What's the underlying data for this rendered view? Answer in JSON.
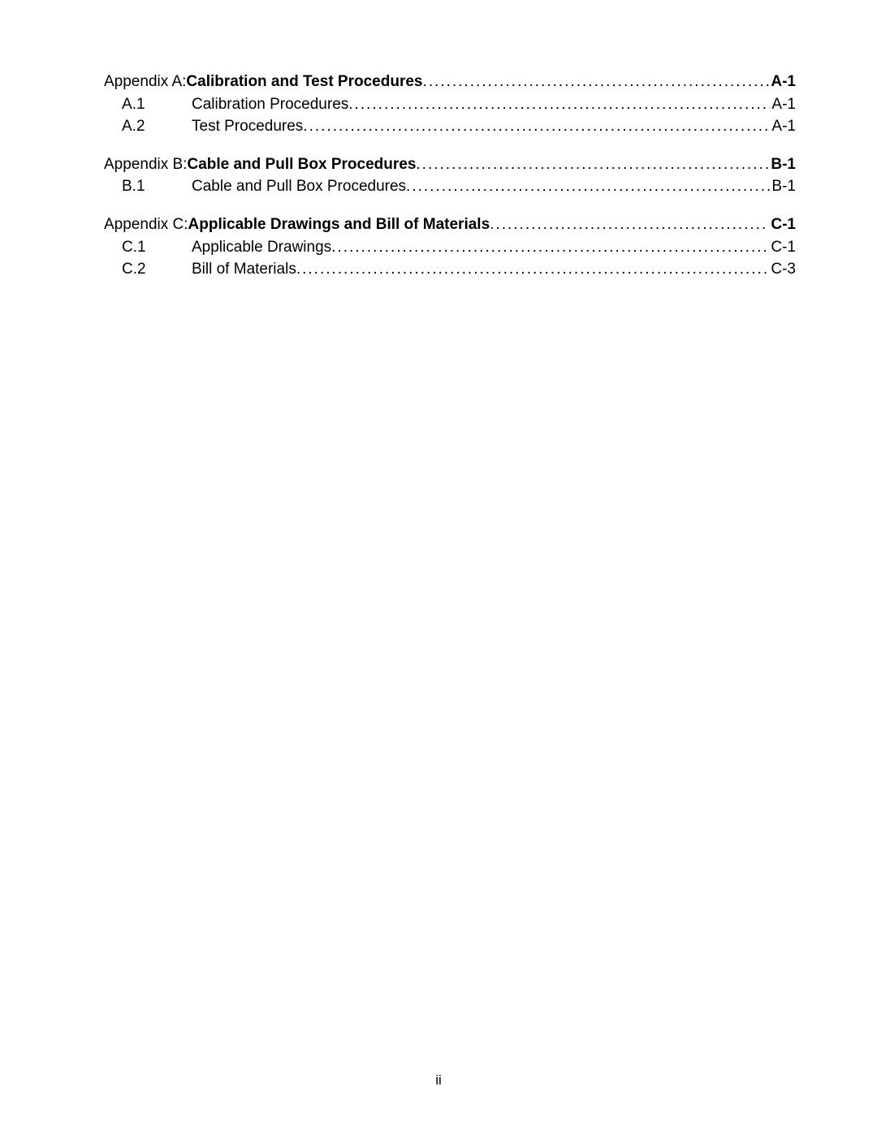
{
  "toc": {
    "groups": [
      {
        "header": {
          "prefix": "Appendix A:  ",
          "title": "Calibration and Test Procedures",
          "page": "A-1"
        },
        "subs": [
          {
            "prefix": "A.1",
            "title": "Calibration Procedures ",
            "page": " A-1"
          },
          {
            "prefix": "A.2",
            "title": "Test Procedures ",
            "page": " A-1"
          }
        ]
      },
      {
        "header": {
          "prefix": "Appendix B:  ",
          "title": "Cable and Pull Box Procedures",
          "page": "B-1"
        },
        "subs": [
          {
            "prefix": "B.1",
            "title": "Cable and Pull Box Procedures ",
            "page": " B-1"
          }
        ]
      },
      {
        "header": {
          "prefix": "Appendix C:  ",
          "title": "Applicable Drawings and Bill of Materials",
          "page": "C-1"
        },
        "subs": [
          {
            "prefix": "C.1",
            "title": "Applicable Drawings ",
            "page": "C-1"
          },
          {
            "prefix": "C.2",
            "title": "Bill of Materials ",
            "page": "C-3"
          }
        ]
      }
    ]
  },
  "footer": {
    "page_number": "ii"
  }
}
